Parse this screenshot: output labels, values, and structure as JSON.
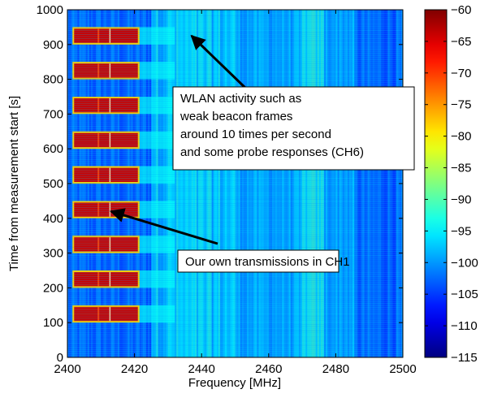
{
  "chart_data": {
    "type": "heatmap",
    "xlabel": "Frequency [MHz]",
    "ylabel": "Time from measurement start [s]",
    "xlim": [
      2400,
      2500
    ],
    "ylim": [
      0,
      1000
    ],
    "xticks": [
      2400,
      2420,
      2440,
      2460,
      2480,
      2500
    ],
    "yticks": [
      0,
      100,
      200,
      300,
      400,
      500,
      600,
      700,
      800,
      900,
      1000
    ],
    "colorbar": {
      "min": -115,
      "max": -60,
      "ticks": [
        -60,
        -65,
        -70,
        -75,
        -80,
        -85,
        -90,
        -95,
        -100,
        -105,
        -110,
        -115
      ],
      "colormap": "jet"
    },
    "background_level_dbm": -103,
    "own_transmission_bursts": {
      "freq_range": [
        2402,
        2421
      ],
      "level_dbm": -64,
      "time_ranges": [
        [
          100,
          150
        ],
        [
          200,
          250
        ],
        [
          300,
          350
        ],
        [
          400,
          450
        ],
        [
          500,
          550
        ],
        [
          600,
          650
        ],
        [
          700,
          750
        ],
        [
          800,
          850
        ],
        [
          900,
          950
        ]
      ]
    },
    "wlan_band": {
      "freq_range": [
        2425,
        2450
      ],
      "level_dbm": -95
    },
    "annotations": [
      {
        "lines": [
          "WLAN activity such as",
          "weak beacon frames",
          "around 10 times per second",
          "and some probe responses (CH6)"
        ],
        "arrow_to": [
          2437,
          925
        ]
      },
      {
        "lines": [
          "Our own transmissions in CH1"
        ],
        "arrow_to": [
          2413,
          420
        ]
      }
    ]
  }
}
